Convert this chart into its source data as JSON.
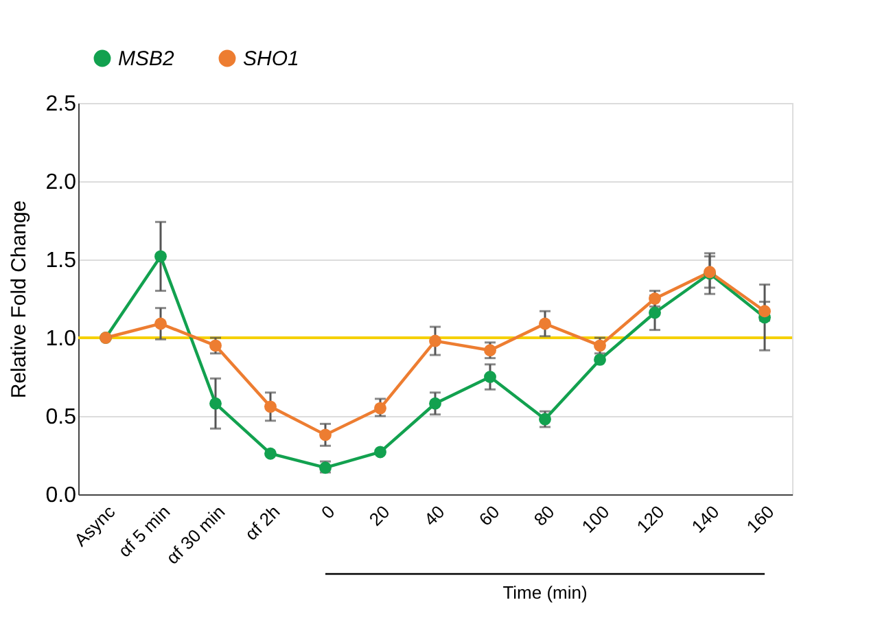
{
  "chart_data": {
    "type": "line",
    "ylabel": "Relative Fold Change",
    "categories": [
      "Async",
      "αf 5 min",
      "αf 30 min",
      "αf 2h",
      "0",
      "20",
      "40",
      "60",
      "80",
      "100",
      "120",
      "140",
      "160"
    ],
    "series": [
      {
        "name": "MSB2",
        "color": "#12a14f",
        "values": [
          1.0,
          1.52,
          0.58,
          0.26,
          0.17,
          0.27,
          0.58,
          0.75,
          0.48,
          0.86,
          1.16,
          1.41,
          1.13
        ],
        "errors": [
          null,
          [
            1.3,
            1.74
          ],
          [
            0.42,
            0.74
          ],
          null,
          [
            0.14,
            0.21
          ],
          null,
          [
            0.51,
            0.65
          ],
          [
            0.67,
            0.83
          ],
          [
            0.43,
            0.53
          ],
          null,
          [
            1.05,
            1.27
          ],
          [
            1.28,
            1.54
          ],
          [
            0.92,
            1.34
          ]
        ]
      },
      {
        "name": "SHO1",
        "color": "#ed7d31",
        "values": [
          1.0,
          1.09,
          0.95,
          0.56,
          0.38,
          0.55,
          0.98,
          0.92,
          1.09,
          0.95,
          1.25,
          1.42,
          1.17
        ],
        "errors": [
          null,
          [
            0.99,
            1.19
          ],
          [
            0.9,
            1.0
          ],
          [
            0.47,
            0.65
          ],
          [
            0.31,
            0.45
          ],
          [
            0.5,
            0.61
          ],
          [
            0.89,
            1.07
          ],
          [
            0.87,
            0.97
          ],
          [
            1.01,
            1.17
          ],
          [
            0.9,
            1.0
          ],
          [
            1.2,
            1.3
          ],
          [
            1.32,
            1.52
          ],
          [
            1.11,
            1.23
          ]
        ]
      }
    ],
    "ylim": [
      0,
      2.5
    ],
    "yticks": [
      {
        "value": 0,
        "label": "0.0"
      },
      0.5,
      {
        "value": 1,
        "label": "1.0"
      },
      1.5,
      {
        "value": 2,
        "label": "2.0"
      },
      2.5
    ],
    "grid": "y",
    "legend": "top left",
    "marker": "circle",
    "line_style": "solid",
    "ref_lines": [
      {
        "axis": "y",
        "value": 1.0,
        "color": "#f5d000"
      }
    ],
    "annotations": [
      "Time (min)"
    ]
  }
}
